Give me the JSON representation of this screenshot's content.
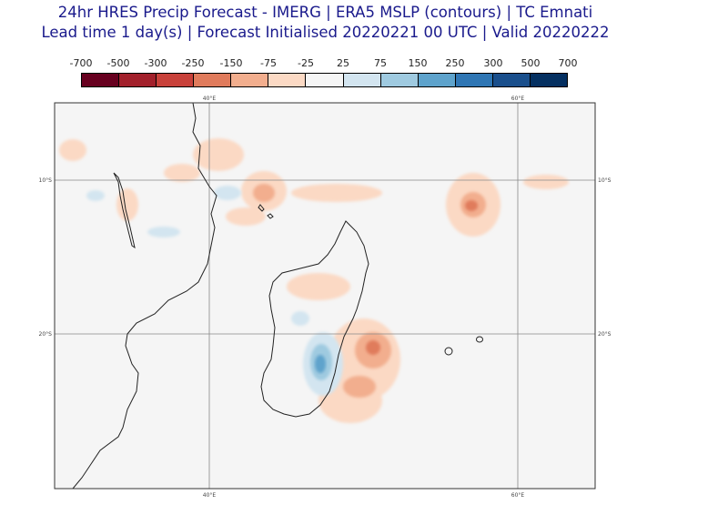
{
  "title": {
    "line1": "24hr HRES Precip Forecast - IMERG | ERA5 MSLP (contours) | TC Emnati",
    "line2": "Lead time 1 day(s) | Forecast Initialised 20220221 00 UTC | Valid 20220222"
  },
  "colorbar": {
    "labels": [
      "-700",
      "-500",
      "-300",
      "-250",
      "-150",
      "-75",
      "-25",
      "25",
      "75",
      "150",
      "250",
      "300",
      "500",
      "700"
    ],
    "colors": [
      "#67001f",
      "#a2202b",
      "#c8413a",
      "#e07b5c",
      "#f2ae8e",
      "#fbd9c4",
      "#f5f5f5",
      "#d3e5f0",
      "#9fcae0",
      "#5ea3cc",
      "#2f76b4",
      "#1a4f8c",
      "#053061"
    ]
  },
  "map": {
    "lon_labels": [
      "40°E",
      "60°E"
    ],
    "lat_labels": [
      "10°S",
      "20°S"
    ],
    "background": "#f5f5f5",
    "coastline_color": "#222222"
  }
}
